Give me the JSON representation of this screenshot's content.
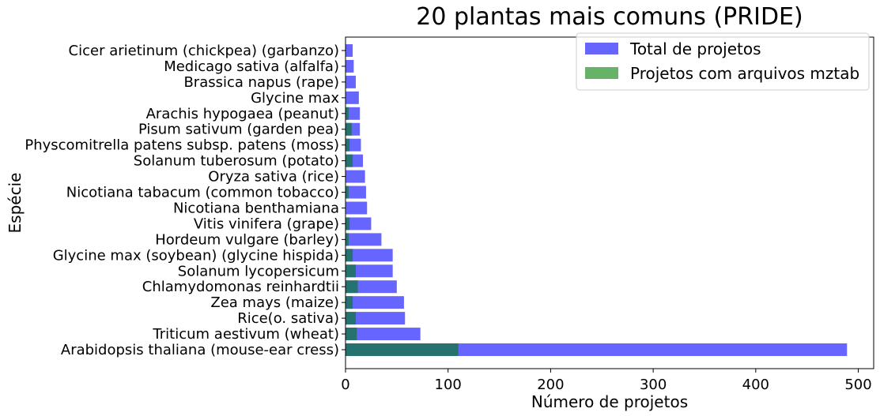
{
  "chart_data": {
    "type": "bar",
    "orientation": "horizontal",
    "title": "20 plantas mais comuns (PRIDE)",
    "xlabel": "Número de projetos",
    "ylabel": "Espécie",
    "xlim": [
      0,
      515
    ],
    "xticks": [
      0,
      100,
      200,
      300,
      400,
      500
    ],
    "categories": [
      "Arabidopsis thaliana (mouse-ear cress)",
      "Triticum aestivum (wheat)",
      "Rice(o. sativa)",
      "Zea mays (maize)",
      "Chlamydomonas reinhardtii",
      "Solanum lycopersicum",
      "Glycine max (soybean) (glycine hispida)",
      "Hordeum vulgare (barley)",
      "Vitis vinifera (grape)",
      "Nicotiana benthamiana",
      "Nicotiana tabacum (common tobacco)",
      "Oryza sativa (rice)",
      "Solanum tuberosum (potato)",
      "Physcomitrella patens subsp. patens (moss)",
      "Pisum sativum (garden pea)",
      "Arachis hypogaea (peanut)",
      "Glycine max",
      "Brassica napus (rape)",
      "Medicago sativa (alfalfa)",
      "Cicer arietinum (chickpea) (garbanzo)"
    ],
    "series": [
      {
        "name": "Total de projetos",
        "color": "#6666ff",
        "values": [
          489,
          73,
          58,
          57,
          50,
          46,
          46,
          35,
          25,
          21,
          20,
          19,
          17,
          15,
          14,
          14,
          13,
          10,
          8,
          7
        ]
      },
      {
        "name": "Projetos com arquivos mztab",
        "color": "#66b266",
        "values": [
          110,
          11,
          10,
          7,
          12,
          10,
          7,
          3,
          4,
          0,
          3,
          0,
          7,
          4,
          6,
          3,
          0,
          0,
          0,
          0
        ]
      }
    ],
    "overlap_color": "#26726e",
    "grid": false,
    "legend_position": "top-right"
  }
}
